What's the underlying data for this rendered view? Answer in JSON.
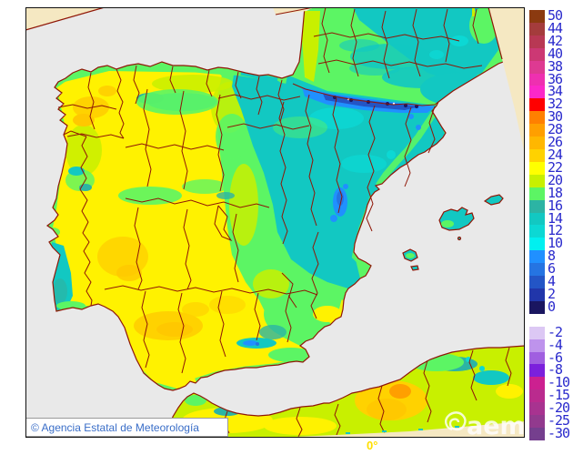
{
  "map": {
    "attribution": "© Agencia Estatal de Meteorología",
    "watermark": "aemet",
    "meridian_label": "0°"
  },
  "legend": {
    "entries": [
      {
        "label": "50",
        "color": "#8B3A10"
      },
      {
        "label": "44",
        "color": "#A43C3C"
      },
      {
        "label": "42",
        "color": "#B83854"
      },
      {
        "label": "40",
        "color": "#CC3874"
      },
      {
        "label": "38",
        "color": "#DE3A92"
      },
      {
        "label": "36",
        "color": "#EE30B0"
      },
      {
        "label": "34",
        "color": "#FB28C8"
      },
      {
        "label": "32",
        "color": "#FF0000"
      },
      {
        "label": "30",
        "color": "#FF8000"
      },
      {
        "label": "28",
        "color": "#FF9F00"
      },
      {
        "label": "26",
        "color": "#FFB700"
      },
      {
        "label": "24",
        "color": "#FFD200"
      },
      {
        "label": "22",
        "color": "#FFFF00"
      },
      {
        "label": "20",
        "color": "#C8F000"
      },
      {
        "label": "18",
        "color": "#5CF564"
      },
      {
        "label": "16",
        "color": "#2CB4A4"
      },
      {
        "label": "14",
        "color": "#12C8C2"
      },
      {
        "label": "12",
        "color": "#0CD8D4"
      },
      {
        "label": "10",
        "color": "#00F0F0"
      },
      {
        "label": "8",
        "color": "#2090FF"
      },
      {
        "label": "6",
        "color": "#2574E2"
      },
      {
        "label": "4",
        "color": "#2355C6"
      },
      {
        "label": "2",
        "color": "#2136AA"
      },
      {
        "label": "0",
        "color": "#1A1660"
      },
      {
        "label": "-2",
        "color": "#DCC8F4",
        "gap_before": true
      },
      {
        "label": "-4",
        "color": "#BE93EC"
      },
      {
        "label": "-6",
        "color": "#A05FE0"
      },
      {
        "label": "-8",
        "color": "#7B20DC"
      },
      {
        "label": "-10",
        "color": "#CC2090"
      },
      {
        "label": "-15",
        "color": "#BA2B8E"
      },
      {
        "label": "-20",
        "color": "#A83390"
      },
      {
        "label": "-25",
        "color": "#923A8E"
      },
      {
        "label": "-30",
        "color": "#753F8E"
      }
    ]
  },
  "colors": {
    "sea": "#E9E9E9",
    "out_of_domain": "#F5E8C2",
    "coast_border": "#8F1606",
    "legend_text": "#2929CC"
  }
}
